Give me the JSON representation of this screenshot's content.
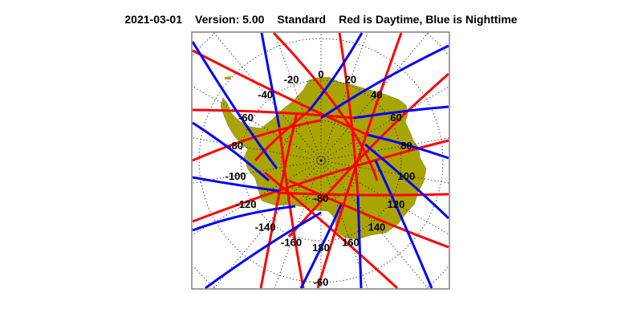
{
  "title": {
    "date": "2021-03-01",
    "version": "Version: 5.00",
    "mode": "Standard",
    "legend": "Red is Daytime, Blue is Nighttime"
  },
  "colors": {
    "daytime": "#ff0000",
    "nighttime": "#0000ff",
    "land": "#a9a500",
    "frame": "#808080"
  },
  "map": {
    "projection": "south polar stereographic",
    "longitude_labels": [
      "0",
      "20",
      "40",
      "60",
      "80",
      "100",
      "120",
      "140",
      "160",
      "180",
      "-160",
      "-140",
      "-120",
      "-100",
      "-80",
      "-60",
      "-40",
      "-20"
    ],
    "latitude_labels": [
      "-80",
      "-60"
    ]
  }
}
